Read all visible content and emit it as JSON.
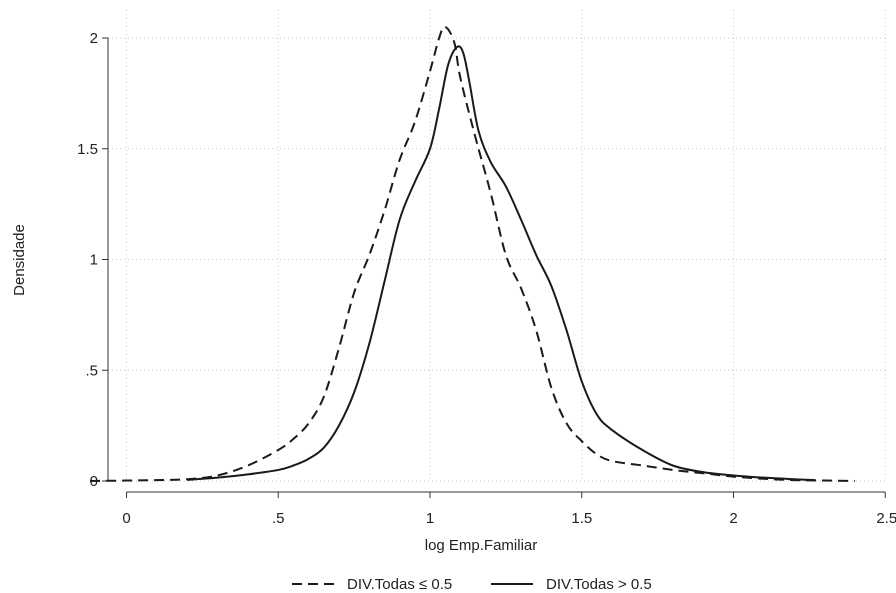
{
  "chart_data": {
    "type": "line",
    "xlabel": "log Emp.Familiar",
    "ylabel": "Densidade",
    "xlim": [
      -0.12,
      2.5
    ],
    "ylim": [
      0,
      2.1
    ],
    "grid": true,
    "legend_position": "bottom",
    "x_ticks": [
      0,
      0.5,
      1,
      1.5,
      2,
      2.5
    ],
    "x_tick_labels": [
      "0",
      ".5",
      "1",
      "1.5",
      "2",
      "2.5"
    ],
    "y_ticks": [
      0,
      0.5,
      1,
      1.5,
      2
    ],
    "y_tick_labels": [
      "0",
      ".5",
      "1",
      "1.5",
      "2"
    ],
    "series": [
      {
        "name": "DIV.Todas ≤ 0.5",
        "style": "dashed",
        "color": "#1a1a1a",
        "points": [
          [
            -0.12,
            0.0
          ],
          [
            0.0,
            0.002
          ],
          [
            0.1,
            0.004
          ],
          [
            0.2,
            0.008
          ],
          [
            0.3,
            0.025
          ],
          [
            0.4,
            0.07
          ],
          [
            0.5,
            0.14
          ],
          [
            0.55,
            0.19
          ],
          [
            0.6,
            0.26
          ],
          [
            0.65,
            0.38
          ],
          [
            0.7,
            0.6
          ],
          [
            0.75,
            0.85
          ],
          [
            0.8,
            1.02
          ],
          [
            0.85,
            1.22
          ],
          [
            0.9,
            1.45
          ],
          [
            0.95,
            1.62
          ],
          [
            1.0,
            1.85
          ],
          [
            1.03,
            2.0
          ],
          [
            1.05,
            2.05
          ],
          [
            1.08,
            1.98
          ],
          [
            1.1,
            1.82
          ],
          [
            1.15,
            1.55
          ],
          [
            1.2,
            1.3
          ],
          [
            1.25,
            1.02
          ],
          [
            1.3,
            0.87
          ],
          [
            1.35,
            0.68
          ],
          [
            1.4,
            0.42
          ],
          [
            1.45,
            0.26
          ],
          [
            1.5,
            0.18
          ],
          [
            1.55,
            0.12
          ],
          [
            1.6,
            0.09
          ],
          [
            1.7,
            0.07
          ],
          [
            1.8,
            0.05
          ],
          [
            1.9,
            0.035
          ],
          [
            2.0,
            0.02
          ],
          [
            2.1,
            0.01
          ],
          [
            2.2,
            0.004
          ],
          [
            2.3,
            0.002
          ],
          [
            2.4,
            0.0
          ]
        ]
      },
      {
        "name": "DIV.Todas > 0.5",
        "style": "solid",
        "color": "#1a1a1a",
        "points": [
          [
            0.2,
            0.005
          ],
          [
            0.3,
            0.015
          ],
          [
            0.4,
            0.03
          ],
          [
            0.5,
            0.05
          ],
          [
            0.55,
            0.07
          ],
          [
            0.6,
            0.1
          ],
          [
            0.65,
            0.15
          ],
          [
            0.7,
            0.25
          ],
          [
            0.75,
            0.4
          ],
          [
            0.8,
            0.62
          ],
          [
            0.85,
            0.9
          ],
          [
            0.9,
            1.18
          ],
          [
            0.95,
            1.35
          ],
          [
            1.0,
            1.5
          ],
          [
            1.03,
            1.68
          ],
          [
            1.06,
            1.88
          ],
          [
            1.09,
            1.96
          ],
          [
            1.11,
            1.93
          ],
          [
            1.13,
            1.8
          ],
          [
            1.16,
            1.58
          ],
          [
            1.2,
            1.44
          ],
          [
            1.25,
            1.33
          ],
          [
            1.3,
            1.18
          ],
          [
            1.35,
            1.02
          ],
          [
            1.4,
            0.88
          ],
          [
            1.45,
            0.68
          ],
          [
            1.5,
            0.45
          ],
          [
            1.55,
            0.3
          ],
          [
            1.6,
            0.23
          ],
          [
            1.7,
            0.14
          ],
          [
            1.8,
            0.07
          ],
          [
            1.9,
            0.04
          ],
          [
            2.0,
            0.025
          ],
          [
            2.1,
            0.015
          ],
          [
            2.2,
            0.008
          ],
          [
            2.27,
            0.004
          ]
        ]
      }
    ]
  }
}
